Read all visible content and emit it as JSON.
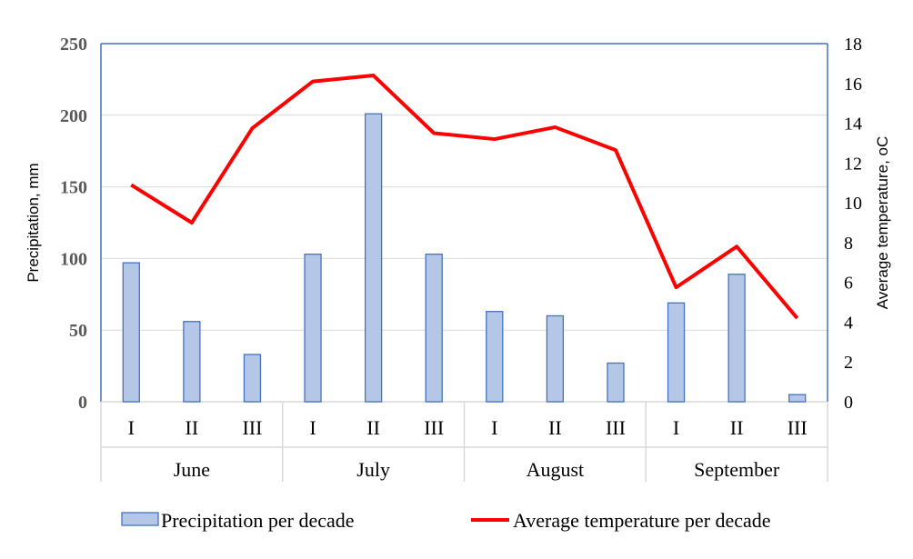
{
  "chart_data": {
    "type": "bar+line",
    "categories": [
      "I",
      "II",
      "III",
      "I",
      "II",
      "III",
      "I",
      "II",
      "III",
      "I",
      "II",
      "III"
    ],
    "groups": [
      "June",
      "July",
      "August",
      "September"
    ],
    "series": [
      {
        "name": "Precipitation per decade",
        "type": "bar",
        "axis": "left",
        "values": [
          97,
          56,
          33,
          103,
          201,
          103,
          63,
          60,
          27,
          69,
          89,
          5
        ]
      },
      {
        "name": "Average temperature per decade",
        "type": "line",
        "axis": "right",
        "values": [
          10.9,
          9.0,
          13.75,
          16.1,
          16.4,
          13.5,
          13.2,
          13.8,
          12.65,
          5.75,
          7.8,
          4.2
        ]
      }
    ],
    "ylabel": "Precipitation, mm",
    "y2label": "Average temperature, oC",
    "ylim": [
      0,
      250
    ],
    "y2lim": [
      0,
      18
    ],
    "yticks": [
      0,
      50,
      100,
      150,
      200,
      250
    ],
    "y2ticks": [
      0,
      2,
      4,
      6,
      8,
      10,
      12,
      14,
      16,
      18
    ],
    "grid": true,
    "legend": "bottom",
    "colors": {
      "bar_fill": "#b4c7e7",
      "bar_stroke": "#4472c4",
      "line": "#ff0000",
      "axis": "#4472c4",
      "grid": "#d9d9d9"
    }
  }
}
